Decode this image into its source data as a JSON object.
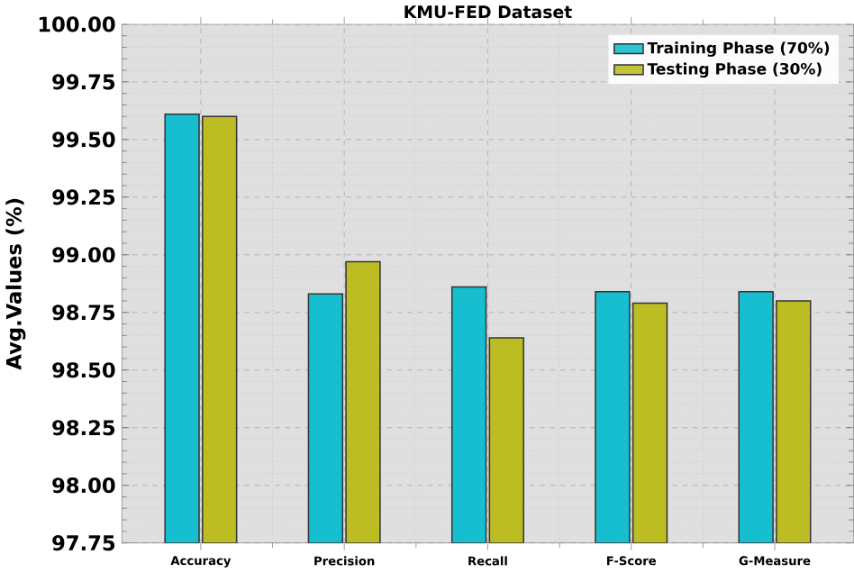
{
  "chart_data": {
    "type": "bar",
    "title": "KMU-FED Dataset",
    "ylabel": "Avg.Values (%)",
    "categories": [
      "Accuracy",
      "Precision",
      "Recall",
      "F-Score",
      "G-Measure"
    ],
    "series": [
      {
        "name": "Training Phase (70%)",
        "color": "#17becf",
        "values": [
          99.61,
          98.83,
          98.86,
          98.84,
          98.84
        ]
      },
      {
        "name": "Testing Phase (30%)",
        "color": "#bcbd22",
        "values": [
          99.6,
          98.97,
          98.64,
          98.79,
          98.8
        ]
      }
    ],
    "ylim": [
      97.75,
      100.0
    ],
    "yticks": [
      {
        "value": 97.75,
        "label": "97.75"
      },
      {
        "value": 98.0,
        "label": "98.00"
      },
      {
        "value": 98.25,
        "label": "98.25"
      },
      {
        "value": 98.5,
        "label": "98.50"
      },
      {
        "value": 98.75,
        "label": "98.75"
      },
      {
        "value": 99.0,
        "label": "99.00"
      },
      {
        "value": 99.25,
        "label": "99.25"
      },
      {
        "value": 99.5,
        "label": "99.50"
      },
      {
        "value": 99.75,
        "label": "99.75"
      },
      {
        "value": 100.0,
        "label": "100.00"
      }
    ],
    "grid": true,
    "legend": "top right"
  }
}
